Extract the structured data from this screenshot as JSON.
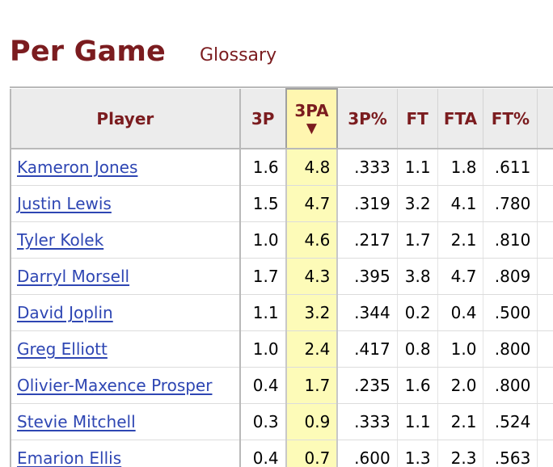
{
  "title": "Per Game",
  "glossary_label": "Glossary",
  "table": {
    "headers": {
      "player": "Player",
      "threep": "3P",
      "threepa": "3PA",
      "sort_indicator": "▼",
      "threep_pct": "3P%",
      "ft": "FT",
      "fta": "FTA",
      "ft_pct": "FT%"
    },
    "rows": [
      {
        "player": "Kameron Jones",
        "threep": "1.6",
        "threepa": "4.8",
        "threep_pct": ".333",
        "ft": "1.1",
        "fta": "1.8",
        "ft_pct": ".611"
      },
      {
        "player": "Justin Lewis",
        "threep": "1.5",
        "threepa": "4.7",
        "threep_pct": ".319",
        "ft": "3.2",
        "fta": "4.1",
        "ft_pct": ".780"
      },
      {
        "player": "Tyler Kolek",
        "threep": "1.0",
        "threepa": "4.6",
        "threep_pct": ".217",
        "ft": "1.7",
        "fta": "2.1",
        "ft_pct": ".810"
      },
      {
        "player": "Darryl Morsell",
        "threep": "1.7",
        "threepa": "4.3",
        "threep_pct": ".395",
        "ft": "3.8",
        "fta": "4.7",
        "ft_pct": ".809"
      },
      {
        "player": "David Joplin",
        "threep": "1.1",
        "threepa": "3.2",
        "threep_pct": ".344",
        "ft": "0.2",
        "fta": "0.4",
        "ft_pct": ".500"
      },
      {
        "player": "Greg Elliott",
        "threep": "1.0",
        "threepa": "2.4",
        "threep_pct": ".417",
        "ft": "0.8",
        "fta": "1.0",
        "ft_pct": ".800"
      },
      {
        "player": "Olivier-Maxence Prosper",
        "threep": "0.4",
        "threepa": "1.7",
        "threep_pct": ".235",
        "ft": "1.6",
        "fta": "2.0",
        "ft_pct": ".800"
      },
      {
        "player": "Stevie Mitchell",
        "threep": "0.3",
        "threepa": "0.9",
        "threep_pct": ".333",
        "ft": "1.1",
        "fta": "2.1",
        "ft_pct": ".524"
      },
      {
        "player": "Emarion Ellis",
        "threep": "0.4",
        "threepa": "0.7",
        "threep_pct": ".600",
        "ft": "1.3",
        "fta": "2.3",
        "ft_pct": ".563"
      }
    ]
  },
  "colors": {
    "title": "#7b1c1f",
    "link": "#2e46b3",
    "sorted_highlight": "#fdfbb8",
    "header_bg": "#ececec"
  }
}
